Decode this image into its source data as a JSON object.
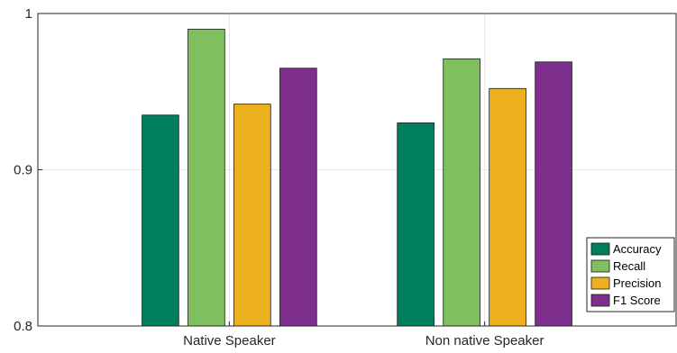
{
  "chart_data": {
    "type": "bar",
    "categories": [
      "Native Speaker",
      "Non native Speaker"
    ],
    "series": [
      {
        "name": "Accuracy",
        "values": [
          0.935,
          0.93
        ],
        "color": "#007f5f"
      },
      {
        "name": "Recall",
        "values": [
          0.99,
          0.971
        ],
        "color": "#7fbf5f"
      },
      {
        "name": "Precision",
        "values": [
          0.942,
          0.952
        ],
        "color": "#edb120"
      },
      {
        "name": "F1 Score",
        "values": [
          0.965,
          0.969
        ],
        "color": "#7e2f8e"
      }
    ],
    "xlim": [
      0.25,
      2.75
    ],
    "ylim": [
      0.8,
      1.0
    ],
    "yticks": [
      0.8,
      0.9,
      1.0
    ],
    "ytick_labels": [
      "0.8",
      "0.9",
      "1"
    ],
    "grid": true,
    "legend_position": "bottom-right"
  }
}
